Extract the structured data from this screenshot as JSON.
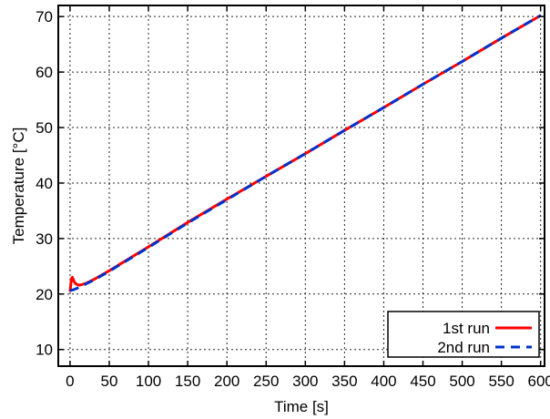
{
  "chart_data": {
    "type": "line",
    "xlabel": "Time [s]",
    "ylabel": "Temperature [°C]",
    "xlim": [
      -15,
      605
    ],
    "ylim": [
      7,
      72
    ],
    "xticks": [
      0,
      50,
      100,
      150,
      200,
      250,
      300,
      350,
      400,
      450,
      500,
      550,
      600
    ],
    "yticks": [
      10,
      20,
      30,
      40,
      50,
      60,
      70
    ],
    "grid": true,
    "legend_position": "bottom-right",
    "series": [
      {
        "name": "1st run",
        "color": "#ff0000",
        "style": "solid",
        "x": [
          0,
          1,
          2,
          3,
          4,
          5,
          7,
          9,
          12,
          15,
          20,
          30,
          50,
          100,
          150,
          200,
          250,
          300,
          350,
          400,
          450,
          500,
          550,
          600
        ],
        "y": [
          20.4,
          21.8,
          22.8,
          23.0,
          22.7,
          22.3,
          21.9,
          21.7,
          21.6,
          21.7,
          21.9,
          22.6,
          24.2,
          28.5,
          32.9,
          37.1,
          41.2,
          45.3,
          49.5,
          53.6,
          57.8,
          61.9,
          66.1,
          70.2
        ]
      },
      {
        "name": "2nd run",
        "color": "#0033cc",
        "style": "dashed",
        "x": [
          0,
          5,
          10,
          15,
          20,
          30,
          50,
          100,
          150,
          200,
          250,
          300,
          350,
          400,
          450,
          500,
          550,
          600
        ],
        "y": [
          20.6,
          20.8,
          21.1,
          21.4,
          21.8,
          22.5,
          24.1,
          28.4,
          32.8,
          37.0,
          41.2,
          45.3,
          49.5,
          53.6,
          57.8,
          61.9,
          66.1,
          70.2
        ]
      }
    ]
  }
}
